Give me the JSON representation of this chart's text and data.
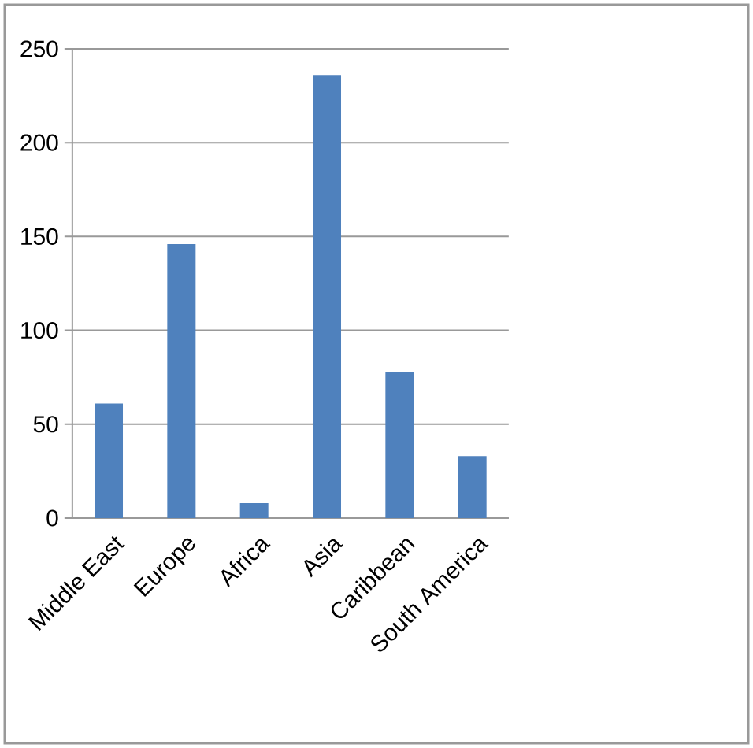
{
  "chart_data": {
    "type": "bar",
    "categories": [
      "Middle East",
      "Europe",
      "Africa",
      "Asia",
      "Caribbean",
      "South America"
    ],
    "values": [
      61,
      146,
      8,
      236,
      78,
      33
    ],
    "color": "#4f81bd",
    "ylim": [
      0,
      250
    ],
    "yticks": [
      0,
      50,
      100,
      150,
      200,
      250
    ],
    "grid": "y"
  }
}
